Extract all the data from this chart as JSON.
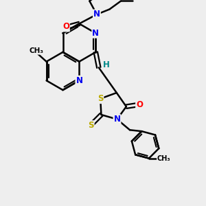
{
  "bg_color": "#eeeeee",
  "bond_color": "#000000",
  "bond_width": 1.8,
  "atom_colors": {
    "N_blue": "#0000ee",
    "O_red": "#ff0000",
    "S_yellow": "#bbaa00",
    "C_black": "#000000",
    "H_teal": "#008888"
  },
  "font_size_atom": 8.5,
  "fig_w": 3.0,
  "fig_h": 3.0,
  "dpi": 100,
  "xlim": [
    0,
    10
  ],
  "ylim": [
    0,
    10
  ]
}
